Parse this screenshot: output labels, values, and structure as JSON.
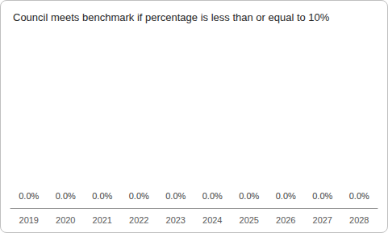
{
  "chart_data": {
    "type": "bar",
    "title": "Council meets benchmark if percentage is less than or equal to 10%",
    "categories": [
      "2019",
      "2020",
      "2021",
      "2022",
      "2023",
      "2024",
      "2025",
      "2026",
      "2027",
      "2028"
    ],
    "values": [
      0,
      0,
      0,
      0,
      0,
      0,
      0,
      0,
      0,
      0
    ],
    "value_labels": [
      "0.0%",
      "0.0%",
      "0.0%",
      "0.0%",
      "0.0%",
      "0.0%",
      "0.0%",
      "0.0%",
      "0.0%",
      "0.0%"
    ],
    "data_labels": true,
    "ylim": [
      0,
      100
    ],
    "grid": false,
    "tick_labels": "x"
  }
}
